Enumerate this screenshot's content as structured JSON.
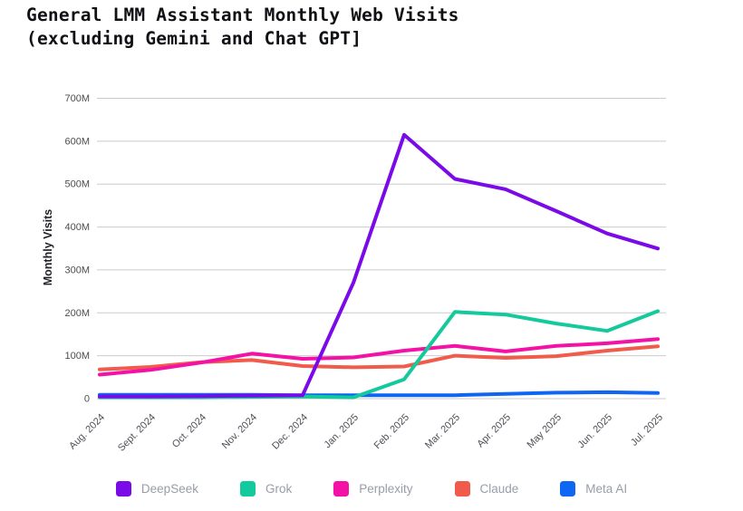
{
  "title": {
    "line1": "General LMM Assistant Monthly Web Visits",
    "line2": "(excluding Gemini and Chat GPT]"
  },
  "chart_data": {
    "type": "line",
    "title": "General LMM Assistant Monthly Web Visits (excluding Gemini and Chat GPT]",
    "xlabel": "",
    "ylabel": "Monthly Visits",
    "unit": "millions of monthly visits",
    "ylim_millions": [
      0,
      700
    ],
    "grid": "horizontal",
    "legend_position": "bottom",
    "y_ticks_millions": [
      0,
      100,
      200,
      300,
      400,
      500,
      600,
      700
    ],
    "y_tick_labels": [
      "0",
      "100M",
      "200M",
      "300M",
      "400M",
      "500M",
      "600M",
      "700M"
    ],
    "categories": [
      "Aug. 2024",
      "Sept. 2024",
      "Oct. 2024",
      "Nov. 2024",
      "Dec. 2024",
      "Jan. 2025",
      "Feb. 2025",
      "Mar. 2025",
      "Apr. 2025",
      "May 2025",
      "Jun. 2025",
      "Jul. 2025"
    ],
    "series": [
      {
        "name": "DeepSeek",
        "color": "#7a0ae8",
        "values_millions": [
          5,
          5,
          6,
          7,
          8,
          270,
          615,
          512,
          488,
          437,
          385,
          350
        ]
      },
      {
        "name": "Grok",
        "color": "#14c99b",
        "values_millions": [
          3,
          3,
          3,
          4,
          5,
          3,
          45,
          202,
          196,
          175,
          158,
          204
        ]
      },
      {
        "name": "Perplexity",
        "color": "#f411a6",
        "values_millions": [
          56,
          67,
          84,
          105,
          93,
          96,
          112,
          123,
          110,
          123,
          129,
          139
        ]
      },
      {
        "name": "Claude",
        "color": "#f15b4b",
        "values_millions": [
          68,
          74,
          85,
          90,
          76,
          73,
          75,
          100,
          95,
          99,
          112,
          122
        ]
      },
      {
        "name": "Meta AI",
        "color": "#0f66f2",
        "values_millions": [
          9,
          9,
          9,
          9,
          8,
          8,
          8,
          8,
          11,
          14,
          15,
          13
        ]
      }
    ]
  }
}
